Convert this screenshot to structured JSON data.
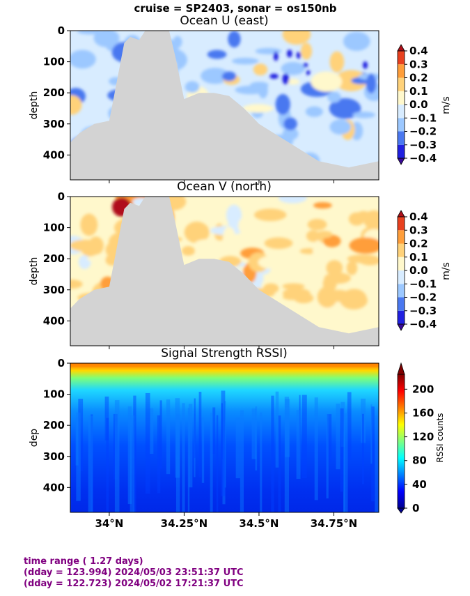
{
  "suptitle": "cruise = SP2403,  sonar = os150nb",
  "footer": {
    "line1": "time range ( 1.27 days)",
    "line2": "(dday = 123.994) 2024/05/03 23:51:37 UTC",
    "line3": "(dday = 122.723) 2024/05/02 17:21:37 UTC"
  },
  "colors": {
    "land_mask": "#d3d3d3",
    "footer_text": "#800080"
  },
  "chart_data": [
    {
      "type": "heatmap",
      "title": "Ocean U (east)",
      "ylabel": "depth",
      "xticks": [
        "34°N",
        "34.25°N",
        "34.5°N",
        "34.75°N"
      ],
      "xtick_values": [
        34.0,
        34.25,
        34.5,
        34.75
      ],
      "xlim": [
        33.87,
        34.9
      ],
      "yticks": [
        "0",
        "100",
        "200",
        "300",
        "400"
      ],
      "ytick_values": [
        0,
        100,
        200,
        300,
        400
      ],
      "ylim": [
        480,
        0
      ],
      "colorbar": {
        "label": "m/s",
        "ticks": [
          "0.4",
          "0.3",
          "0.2",
          "0.1",
          "0.0",
          "−0.1",
          "−0.2",
          "−0.3",
          "−0.4"
        ],
        "range": [
          -0.4,
          0.4
        ],
        "extend": "both",
        "colormap": "blue-white-red discrete",
        "bands": [
          "#3a0a9a",
          "#2020e0",
          "#4a78f0",
          "#9cc8ff",
          "#d8ecff",
          "#fff8cc",
          "#ffd27a",
          "#ff9e3a",
          "#e8401e",
          "#b0101a"
        ]
      },
      "field_description": "mostly weak westward flow (-0.1 to -0.2 m/s) with patches of +0.1 near surface",
      "mask_profile_depth": [
        [
          33.87,
          360
        ],
        [
          33.9,
          330
        ],
        [
          33.95,
          300
        ],
        [
          34.0,
          290
        ],
        [
          34.03,
          140
        ],
        [
          34.05,
          40
        ],
        [
          34.07,
          20
        ],
        [
          34.1,
          30
        ],
        [
          34.12,
          0
        ],
        [
          34.2,
          0
        ],
        [
          34.22,
          80
        ],
        [
          34.25,
          220
        ],
        [
          34.3,
          200
        ],
        [
          34.35,
          200
        ],
        [
          34.4,
          210
        ],
        [
          34.45,
          250
        ],
        [
          34.5,
          300
        ],
        [
          34.6,
          360
        ],
        [
          34.7,
          420
        ],
        [
          34.8,
          440
        ],
        [
          34.9,
          420
        ]
      ]
    },
    {
      "type": "heatmap",
      "title": "Ocean V (north)",
      "ylabel": "depth",
      "xticks": [
        "34°N",
        "34.25°N",
        "34.5°N",
        "34.75°N"
      ],
      "xtick_values": [
        34.0,
        34.25,
        34.5,
        34.75
      ],
      "xlim": [
        33.87,
        34.9
      ],
      "yticks": [
        "0",
        "100",
        "200",
        "300",
        "400"
      ],
      "ytick_values": [
        0,
        100,
        200,
        300,
        400
      ],
      "ylim": [
        480,
        0
      ],
      "colorbar": {
        "label": "m/s",
        "ticks": [
          "0.4",
          "0.3",
          "0.2",
          "0.1",
          "0.0",
          "−0.1",
          "−0.2",
          "−0.3",
          "−0.4"
        ],
        "range": [
          -0.4,
          0.4
        ],
        "extend": "both",
        "colormap": "blue-white-red discrete",
        "bands": [
          "#3a0a9a",
          "#2020e0",
          "#4a78f0",
          "#9cc8ff",
          "#d8ecff",
          "#fff8cc",
          "#ffd27a",
          "#ff9e3a",
          "#e8401e",
          "#b0101a"
        ]
      },
      "field_description": "mostly northward flow (+0.1 to +0.2 m/s) with strong core >0.4 near 34.03N surface",
      "mask_profile_depth": [
        [
          33.87,
          360
        ],
        [
          33.9,
          330
        ],
        [
          33.95,
          300
        ],
        [
          34.0,
          290
        ],
        [
          34.03,
          140
        ],
        [
          34.05,
          40
        ],
        [
          34.07,
          20
        ],
        [
          34.1,
          30
        ],
        [
          34.12,
          0
        ],
        [
          34.2,
          0
        ],
        [
          34.22,
          80
        ],
        [
          34.25,
          220
        ],
        [
          34.3,
          200
        ],
        [
          34.35,
          200
        ],
        [
          34.4,
          210
        ],
        [
          34.45,
          250
        ],
        [
          34.5,
          300
        ],
        [
          34.6,
          360
        ],
        [
          34.7,
          420
        ],
        [
          34.8,
          440
        ],
        [
          34.9,
          420
        ]
      ]
    },
    {
      "type": "heatmap",
      "title": "Signal Strength RSSI)",
      "ylabel": "dep",
      "xticks": [
        "34°N",
        "34.25°N",
        "34.5°N",
        "34.75°N"
      ],
      "xtick_values": [
        34.0,
        34.25,
        34.5,
        34.75
      ],
      "xlim": [
        33.87,
        34.9
      ],
      "yticks": [
        "0",
        "100",
        "200",
        "300",
        "400"
      ],
      "ytick_values": [
        0,
        100,
        200,
        300,
        400
      ],
      "ylim": [
        480,
        0
      ],
      "colorbar": {
        "label": "RSSI counts",
        "ticks": [
          "200",
          "160",
          "120",
          "80",
          "40",
          "0"
        ],
        "tick_values": [
          200,
          160,
          120,
          80,
          40,
          0
        ],
        "range": [
          0,
          225
        ],
        "extend": "max",
        "colormap": "jet"
      },
      "field_description": "high counts (~200) near surface decreasing to ~40 at depth"
    }
  ]
}
